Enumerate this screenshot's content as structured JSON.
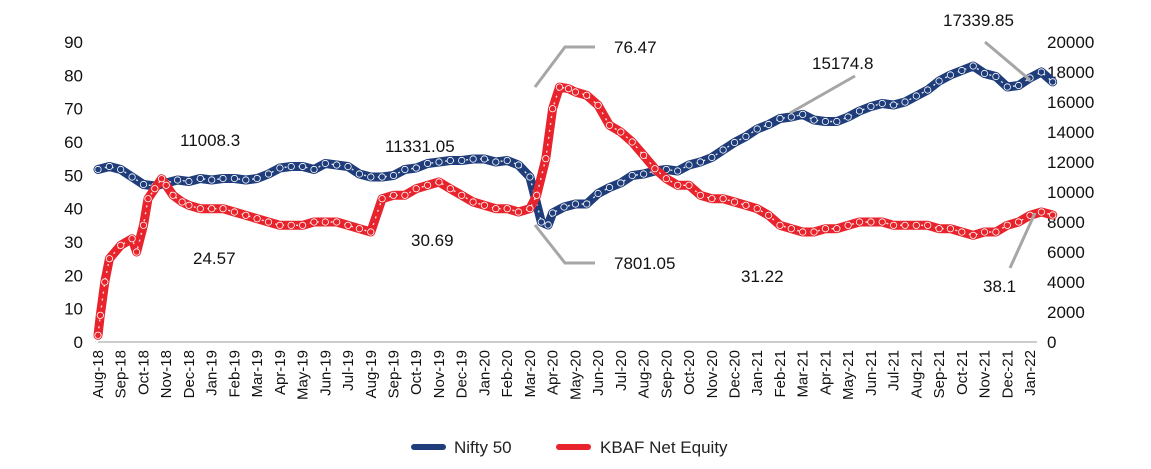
{
  "chart_data": {
    "type": "line",
    "x_labels": [
      "Aug-18",
      "Sep-18",
      "Oct-18",
      "Nov-18",
      "Dec-18",
      "Jan-19",
      "Feb-19",
      "Mar-19",
      "Apr-19",
      "May-19",
      "Jun-19",
      "Jul-19",
      "Aug-19",
      "Sep-19",
      "Oct-19",
      "Nov-19",
      "Dec-19",
      "Jan-20",
      "Feb-20",
      "Mar-20",
      "Apr-20",
      "May-20",
      "Jun-20",
      "Jul-20",
      "Aug-20",
      "Sep-20",
      "Oct-20",
      "Nov-20",
      "Dec-20",
      "Jan-21",
      "Feb-21",
      "Mar-21",
      "Apr-21",
      "May-21",
      "Jun-21",
      "Jul-21",
      "Aug-21",
      "Sep-21",
      "Oct-21",
      "Nov-21",
      "Dec-21",
      "Jan-22"
    ],
    "y_left": {
      "min": 0,
      "max": 90,
      "ticks": [
        "0",
        "10",
        "20",
        "30",
        "40",
        "50",
        "60",
        "70",
        "80",
        "90"
      ]
    },
    "y_right": {
      "min": 0,
      "max": 20000,
      "ticks": [
        "0",
        "2000",
        "4000",
        "6000",
        "8000",
        "10000",
        "12000",
        "14000",
        "16000",
        "18000",
        "20000"
      ]
    },
    "series": [
      {
        "name": "Nifty 50",
        "axis": "right",
        "color": "#1f3d7a",
        "points": [
          [
            0,
            11500
          ],
          [
            0.5,
            11700
          ],
          [
            1,
            11500
          ],
          [
            1.5,
            11000
          ],
          [
            2,
            10500
          ],
          [
            2.5,
            10400
          ],
          [
            3,
            10600
          ],
          [
            3.5,
            10800
          ],
          [
            4,
            10700
          ],
          [
            4.5,
            10900
          ],
          [
            5,
            10800
          ],
          [
            5.5,
            10900
          ],
          [
            6,
            10900
          ],
          [
            6.5,
            10800
          ],
          [
            7,
            10900
          ],
          [
            7.5,
            11200
          ],
          [
            8,
            11600
          ],
          [
            8.5,
            11700
          ],
          [
            9,
            11700
          ],
          [
            9.5,
            11500
          ],
          [
            10,
            11900
          ],
          [
            10.5,
            11800
          ],
          [
            11,
            11700
          ],
          [
            11.5,
            11200
          ],
          [
            12,
            11000
          ],
          [
            12.5,
            11000
          ],
          [
            13,
            11100
          ],
          [
            13.5,
            11500
          ],
          [
            14,
            11600
          ],
          [
            14.5,
            11900
          ],
          [
            15,
            12000
          ],
          [
            15.5,
            12100
          ],
          [
            16,
            12100
          ],
          [
            16.5,
            12200
          ],
          [
            17,
            12200
          ],
          [
            17.5,
            12000
          ],
          [
            18,
            12100
          ],
          [
            18.5,
            11800
          ],
          [
            19,
            11000
          ],
          [
            19.5,
            8000
          ],
          [
            19.8,
            7801
          ],
          [
            20,
            8600
          ],
          [
            20.5,
            9000
          ],
          [
            21,
            9200
          ],
          [
            21.5,
            9200
          ],
          [
            22,
            9900
          ],
          [
            22.5,
            10300
          ],
          [
            23,
            10600
          ],
          [
            23.5,
            11100
          ],
          [
            24,
            11200
          ],
          [
            24.5,
            11400
          ],
          [
            25,
            11500
          ],
          [
            25.5,
            11400
          ],
          [
            26,
            11800
          ],
          [
            26.5,
            12000
          ],
          [
            27,
            12300
          ],
          [
            27.5,
            12800
          ],
          [
            28,
            13300
          ],
          [
            28.5,
            13700
          ],
          [
            29,
            14200
          ],
          [
            29.5,
            14500
          ],
          [
            30,
            14900
          ],
          [
            30.5,
            15000
          ],
          [
            31,
            15174.8
          ],
          [
            31.5,
            14800
          ],
          [
            32,
            14700
          ],
          [
            32.5,
            14700
          ],
          [
            33,
            15000
          ],
          [
            33.5,
            15400
          ],
          [
            34,
            15700
          ],
          [
            34.5,
            15900
          ],
          [
            35,
            15800
          ],
          [
            35.5,
            16000
          ],
          [
            36,
            16400
          ],
          [
            36.5,
            16800
          ],
          [
            37,
            17400
          ],
          [
            37.5,
            17800
          ],
          [
            38,
            18100
          ],
          [
            38.5,
            18400
          ],
          [
            39,
            17900
          ],
          [
            39.5,
            17700
          ],
          [
            40,
            17000
          ],
          [
            40.5,
            17100
          ],
          [
            41,
            17600
          ],
          [
            41.5,
            18000
          ],
          [
            42,
            17339.85
          ]
        ]
      },
      {
        "name": "KBAF Net Equity",
        "axis": "left",
        "color": "#e8232b",
        "points": [
          [
            0,
            2
          ],
          [
            0.1,
            8
          ],
          [
            0.3,
            18
          ],
          [
            0.5,
            25
          ],
          [
            1,
            29
          ],
          [
            1.5,
            31
          ],
          [
            1.7,
            27
          ],
          [
            2,
            35
          ],
          [
            2.2,
            43
          ],
          [
            2.5,
            46
          ],
          [
            2.8,
            49
          ],
          [
            3,
            47
          ],
          [
            3.3,
            44
          ],
          [
            3.7,
            42
          ],
          [
            4,
            41
          ],
          [
            4.5,
            40
          ],
          [
            5,
            40
          ],
          [
            5.5,
            40
          ],
          [
            6,
            39
          ],
          [
            6.5,
            38
          ],
          [
            7,
            37
          ],
          [
            7.5,
            36
          ],
          [
            8,
            35
          ],
          [
            8.5,
            35
          ],
          [
            9,
            35
          ],
          [
            9.5,
            36
          ],
          [
            10,
            36
          ],
          [
            10.5,
            36
          ],
          [
            11,
            35
          ],
          [
            11.5,
            34
          ],
          [
            12,
            33
          ],
          [
            12.5,
            43
          ],
          [
            13,
            44
          ],
          [
            13.5,
            44
          ],
          [
            14,
            46
          ],
          [
            14.5,
            47
          ],
          [
            15,
            48
          ],
          [
            15.5,
            46
          ],
          [
            16,
            44
          ],
          [
            16.5,
            42
          ],
          [
            17,
            41
          ],
          [
            17.5,
            40
          ],
          [
            18,
            40
          ],
          [
            18.5,
            39
          ],
          [
            19,
            40
          ],
          [
            19.3,
            44
          ],
          [
            19.7,
            55
          ],
          [
            20,
            70
          ],
          [
            20.3,
            76.47
          ],
          [
            20.7,
            76
          ],
          [
            21,
            75
          ],
          [
            21.5,
            74
          ],
          [
            22,
            71
          ],
          [
            22.5,
            65
          ],
          [
            23,
            63
          ],
          [
            23.5,
            60
          ],
          [
            24,
            56
          ],
          [
            24.5,
            52
          ],
          [
            25,
            49
          ],
          [
            25.5,
            47
          ],
          [
            26,
            47
          ],
          [
            26.5,
            44
          ],
          [
            27,
            43
          ],
          [
            27.5,
            43
          ],
          [
            28,
            42
          ],
          [
            28.5,
            41
          ],
          [
            29,
            40
          ],
          [
            29.5,
            38
          ],
          [
            30,
            35
          ],
          [
            30.5,
            34
          ],
          [
            31,
            33
          ],
          [
            31.5,
            33
          ],
          [
            32,
            34
          ],
          [
            32.5,
            34
          ],
          [
            33,
            35
          ],
          [
            33.5,
            36
          ],
          [
            34,
            36
          ],
          [
            34.5,
            36
          ],
          [
            35,
            35
          ],
          [
            35.5,
            35
          ],
          [
            36,
            35
          ],
          [
            36.5,
            35
          ],
          [
            37,
            34
          ],
          [
            37.5,
            34
          ],
          [
            38,
            33
          ],
          [
            38.5,
            32
          ],
          [
            39,
            33
          ],
          [
            39.5,
            33
          ],
          [
            40,
            35
          ],
          [
            40.5,
            36
          ],
          [
            41,
            38
          ],
          [
            41.5,
            39
          ],
          [
            42,
            38.1
          ]
        ]
      }
    ],
    "annotations": [
      {
        "text": "11008.3"
      },
      {
        "text": "24.57"
      },
      {
        "text": "11331.05"
      },
      {
        "text": "30.69"
      },
      {
        "text": "76.47"
      },
      {
        "text": "7801.05"
      },
      {
        "text": "15174.8"
      },
      {
        "text": "31.22"
      },
      {
        "text": "17339.85"
      },
      {
        "text": "38.1"
      }
    ],
    "legend": {
      "position": "bottom-center",
      "items": [
        "Nifty 50",
        "KBAF Net Equity"
      ]
    },
    "grid": false
  }
}
